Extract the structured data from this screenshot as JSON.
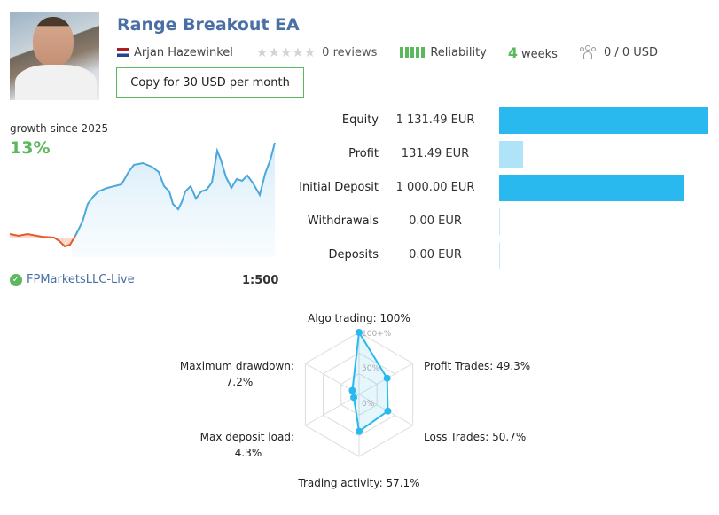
{
  "header": {
    "title": "Range Breakout EA",
    "author": "Arjan Hazewinkel",
    "stars": "★★★★★",
    "reviews": "0 reviews",
    "reliability_label": "Reliability",
    "weeks_value": "4",
    "weeks_label": "weeks",
    "subscribers": "0 / 0 USD",
    "copy_button": "Copy for 30 USD per month"
  },
  "growth": {
    "label": "growth since 2025",
    "value": "13%",
    "broker": "FPMarketsLLC-Live",
    "leverage": "1:500"
  },
  "stats": [
    {
      "label": "Equity",
      "value": "1 131.49 EUR",
      "amount": 1131.49
    },
    {
      "label": "Profit",
      "value": "131.49 EUR",
      "amount": 131.49
    },
    {
      "label": "Initial Deposit",
      "value": "1 000.00 EUR",
      "amount": 1000.0
    },
    {
      "label": "Withdrawals",
      "value": "0.00 EUR",
      "amount": 0
    },
    {
      "label": "Deposits",
      "value": "0.00 EUR",
      "amount": 0
    }
  ],
  "radar": {
    "axis_labels": {
      "algo": "Algo trading: 100%",
      "profit": "Profit Trades: 49.3%",
      "loss": "Loss Trades: 50.7%",
      "activity": "Trading activity: 57.1%",
      "load_name": "Max deposit load:",
      "load_value": "4.3%",
      "drawdown_name": "Maximum drawdown:",
      "drawdown_value": "7.2%"
    },
    "scale_labels": {
      "max": "100+%",
      "mid": "50%",
      "min": "0%"
    },
    "values": [
      100,
      49.3,
      50.7,
      57.1,
      4.3,
      7.2
    ]
  },
  "colors": {
    "accent": "#29b9ee",
    "green": "#5cb85c",
    "link": "#4a6fa5",
    "negative": "#e8582d"
  }
}
